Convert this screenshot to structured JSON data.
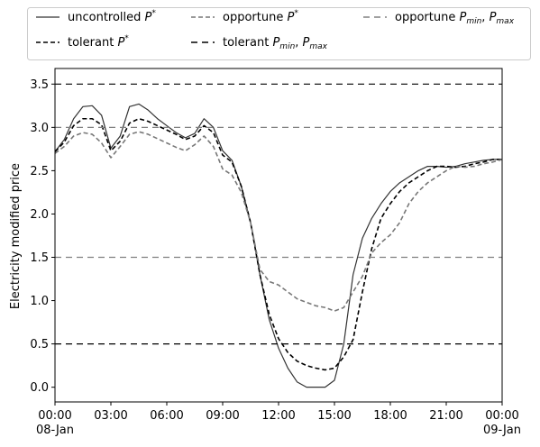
{
  "chart_data": {
    "type": "line",
    "xlabel": "",
    "ylabel": "Electricity modified price",
    "ylim": [
      -0.17,
      3.68
    ],
    "x_ticks": [
      {
        "hour": 0,
        "label": "00:00",
        "sublabel": "08-Jan"
      },
      {
        "hour": 3,
        "label": "03:00",
        "sublabel": ""
      },
      {
        "hour": 6,
        "label": "06:00",
        "sublabel": ""
      },
      {
        "hour": 9,
        "label": "09:00",
        "sublabel": ""
      },
      {
        "hour": 12,
        "label": "12:00",
        "sublabel": ""
      },
      {
        "hour": 15,
        "label": "15:00",
        "sublabel": ""
      },
      {
        "hour": 18,
        "label": "18:00",
        "sublabel": ""
      },
      {
        "hour": 21,
        "label": "21:00",
        "sublabel": ""
      },
      {
        "hour": 24,
        "label": "00:00",
        "sublabel": "09-Jan"
      }
    ],
    "y_ticks": [
      {
        "value": 0.0,
        "label": "0.0"
      },
      {
        "value": 0.5,
        "label": "0.5"
      },
      {
        "value": 1.0,
        "label": "1.0"
      },
      {
        "value": 1.5,
        "label": "1.5"
      },
      {
        "value": 2.0,
        "label": "2.0"
      },
      {
        "value": 2.5,
        "label": "2.5"
      },
      {
        "value": 3.0,
        "label": "3.0"
      },
      {
        "value": 3.5,
        "label": "3.5"
      }
    ],
    "legend": {
      "placement": "top, above plot, 3 columns",
      "entries": [
        {
          "label": "uncontrolled",
          "sup": "*",
          "prefix_sym": "P",
          "series": "uncontrolled"
        },
        {
          "label": "tolerant",
          "sup": "*",
          "prefix_sym": "P",
          "series": "tolerant"
        },
        {
          "label": "opportune",
          "sup": "*",
          "prefix_sym": "P",
          "series": "opportune"
        },
        {
          "label": "tolerant",
          "bounds": true,
          "series": "tolerant_bounds"
        },
        {
          "label": "opportune",
          "bounds": true,
          "series": "opportune_bounds"
        }
      ]
    },
    "series": [
      {
        "name": "uncontrolled P*",
        "color": "#333333",
        "dash": "solid",
        "x": [
          0,
          0.5,
          1,
          1.5,
          2,
          2.5,
          3,
          3.5,
          4,
          4.5,
          5,
          5.5,
          6,
          6.5,
          7,
          7.5,
          8,
          8.5,
          9,
          9.5,
          10,
          10.5,
          11,
          11.5,
          12,
          12.5,
          13,
          13.5,
          14,
          14.5,
          15,
          15.5,
          16,
          16.5,
          17,
          17.5,
          18,
          18.5,
          19,
          19.5,
          20,
          20.5,
          21,
          21.5,
          22,
          22.5,
          23,
          23.5,
          24
        ],
        "y": [
          2.72,
          2.86,
          3.1,
          3.24,
          3.25,
          3.14,
          2.76,
          2.9,
          3.24,
          3.27,
          3.2,
          3.1,
          3.02,
          2.94,
          2.88,
          2.93,
          3.1,
          3.0,
          2.73,
          2.62,
          2.32,
          1.9,
          1.3,
          0.78,
          0.45,
          0.22,
          0.06,
          0.0,
          0.0,
          0.0,
          0.08,
          0.5,
          1.3,
          1.72,
          1.95,
          2.12,
          2.26,
          2.36,
          2.43,
          2.5,
          2.55,
          2.55,
          2.54,
          2.55,
          2.58,
          2.6,
          2.62,
          2.63,
          2.63
        ]
      },
      {
        "name": "tolerant P*",
        "color": "#000000",
        "dash": "5,3",
        "x": [
          0,
          0.5,
          1,
          1.5,
          2,
          2.5,
          3,
          3.5,
          4,
          4.5,
          5,
          5.5,
          6,
          6.5,
          7,
          7.5,
          8,
          8.5,
          9,
          9.5,
          10,
          10.5,
          11,
          11.5,
          12,
          12.5,
          13,
          13.5,
          14,
          14.5,
          15,
          15.5,
          16,
          16.5,
          17,
          17.5,
          18,
          18.5,
          19,
          19.5,
          20,
          20.5,
          21,
          21.5,
          22,
          22.5,
          23,
          23.5,
          24
        ],
        "y": [
          2.72,
          2.83,
          3.02,
          3.1,
          3.1,
          3.03,
          2.73,
          2.84,
          3.05,
          3.1,
          3.07,
          3.02,
          2.97,
          2.92,
          2.86,
          2.9,
          3.02,
          2.94,
          2.68,
          2.6,
          2.32,
          1.9,
          1.3,
          0.84,
          0.56,
          0.4,
          0.3,
          0.25,
          0.22,
          0.2,
          0.22,
          0.35,
          0.55,
          1.1,
          1.6,
          1.95,
          2.12,
          2.26,
          2.36,
          2.43,
          2.5,
          2.55,
          2.55,
          2.54,
          2.55,
          2.58,
          2.6,
          2.63,
          2.63
        ]
      },
      {
        "name": "opportune P*",
        "color": "#777777",
        "dash": "5,3",
        "x": [
          0,
          0.5,
          1,
          1.5,
          2,
          2.5,
          3,
          3.5,
          4,
          4.5,
          5,
          5.5,
          6,
          6.5,
          7,
          7.5,
          8,
          8.5,
          9,
          9.5,
          10,
          10.5,
          11,
          11.5,
          12,
          12.5,
          13,
          13.5,
          14,
          14.5,
          15,
          15.5,
          16,
          16.5,
          17,
          17.5,
          18,
          18.5,
          19,
          19.5,
          20,
          20.5,
          21,
          21.5,
          22,
          22.5,
          23,
          23.5,
          24
        ],
        "y": [
          2.7,
          2.78,
          2.9,
          2.94,
          2.92,
          2.82,
          2.65,
          2.78,
          2.92,
          2.95,
          2.92,
          2.87,
          2.82,
          2.77,
          2.73,
          2.8,
          2.9,
          2.78,
          2.52,
          2.45,
          2.25,
          1.9,
          1.36,
          1.22,
          1.18,
          1.1,
          1.02,
          0.98,
          0.94,
          0.92,
          0.88,
          0.92,
          1.1,
          1.28,
          1.55,
          1.67,
          1.76,
          1.9,
          2.12,
          2.26,
          2.36,
          2.43,
          2.5,
          2.55,
          2.54,
          2.55,
          2.58,
          2.6,
          2.63
        ]
      },
      {
        "name": "tolerant Pmin, Pmax",
        "color": "#000000",
        "dash": "7,5",
        "hlines": [
          0.5,
          3.5
        ]
      },
      {
        "name": "opportune Pmin, Pmax",
        "color": "#808080",
        "dash": "7,5",
        "hlines": [
          1.5,
          3.0
        ]
      }
    ]
  }
}
